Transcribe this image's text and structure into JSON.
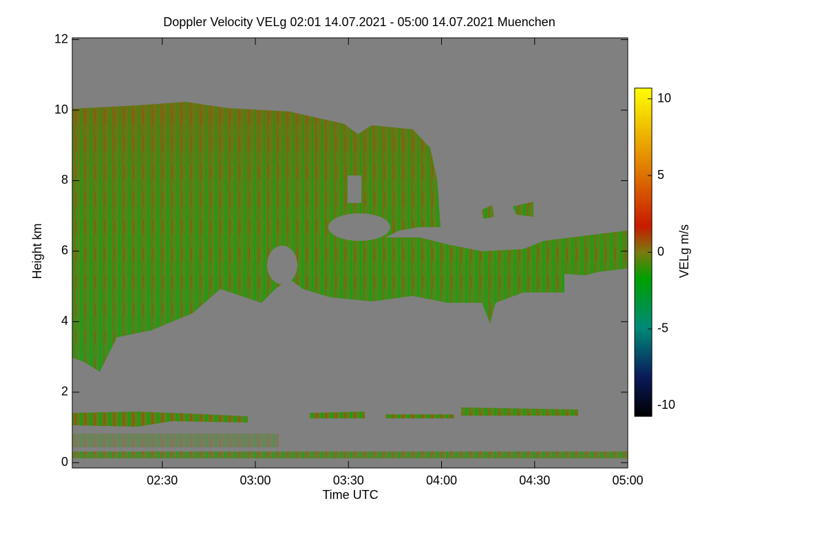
{
  "chart_data": {
    "type": "heatmap",
    "title": "Doppler Velocity VELg   02:01 14.07.2021 - 05:00 14.07.2021 Muenchen",
    "xlabel": "Time UTC",
    "ylabel": "Height km",
    "colorbar_label": "VELg m/s",
    "xlim": [
      121,
      300
    ],
    "xticks": [
      {
        "value": 150,
        "label": "02:30"
      },
      {
        "value": 180,
        "label": "03:00"
      },
      {
        "value": 210,
        "label": "03:30"
      },
      {
        "value": 240,
        "label": "04:00"
      },
      {
        "value": 270,
        "label": "04:30"
      },
      {
        "value": 300,
        "label": "05:00"
      }
    ],
    "ylim": [
      -0.15,
      12.05
    ],
    "yticks": [
      0,
      2,
      4,
      6,
      8,
      10,
      12
    ],
    "clim": [
      -10.7,
      10.7
    ],
    "cticks": [
      -10,
      -5,
      0,
      5,
      10
    ]
  }
}
